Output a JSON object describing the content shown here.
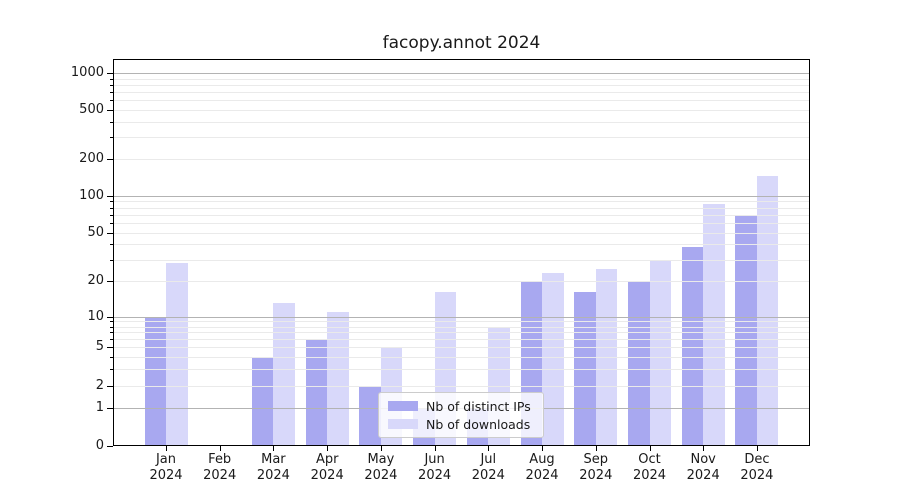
{
  "chart_data": {
    "type": "bar",
    "title": "facopy.annot 2024",
    "year": "2024",
    "months": [
      "Jan",
      "Feb",
      "Mar",
      "Apr",
      "May",
      "Jun",
      "Jul",
      "Aug",
      "Sep",
      "Oct",
      "Nov",
      "Dec"
    ],
    "series": [
      {
        "name": "Nb of distinct IPs",
        "color": "#a8a8f0",
        "values": [
          10,
          0,
          4,
          6,
          2,
          1,
          1,
          20,
          16,
          20,
          38,
          70
        ]
      },
      {
        "name": "Nb of downloads",
        "color": "#d8d8fa",
        "values": [
          28,
          0,
          13,
          11,
          5,
          16,
          8,
          23,
          25,
          30,
          85,
          145
        ]
      }
    ],
    "y_ticks": [
      0,
      1,
      2,
      5,
      10,
      20,
      50,
      100,
      200,
      500,
      1000
    ],
    "scale": "symlog",
    "ylim": [
      0,
      1300
    ],
    "grid": true,
    "legend_position": "lower center-left, overlapping bars",
    "colors": {
      "background": "#ffffff",
      "grid_major": "#b3b3b3",
      "grid_minor": "#eaeaea",
      "axis": "#000000",
      "text": "#1a1a1a",
      "legend_border": "#cccccc"
    }
  }
}
